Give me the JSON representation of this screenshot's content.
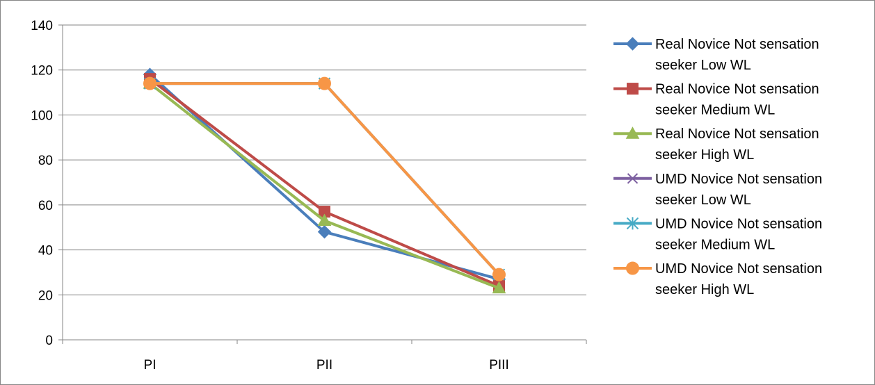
{
  "chart_data": {
    "type": "line",
    "categories": [
      "PI",
      "PII",
      "PIII"
    ],
    "ylim": [
      0,
      140
    ],
    "yticks": [
      0,
      20,
      40,
      60,
      80,
      100,
      120,
      140
    ],
    "grid": "horizontal",
    "legend_position": "right",
    "series": [
      {
        "name_lines": [
          "Real Novice Not sensation",
          "seeker Low WL"
        ],
        "color": "#4A7EBB",
        "marker": "diamond",
        "values": [
          118,
          48,
          27
        ]
      },
      {
        "name_lines": [
          "Real Novice Not sensation",
          "seeker Medium WL"
        ],
        "color": "#BE4B48",
        "marker": "square",
        "values": [
          116,
          57,
          24
        ]
      },
      {
        "name_lines": [
          "Real Novice Not sensation",
          "seeker High WL"
        ],
        "color": "#98B954",
        "marker": "triangle",
        "values": [
          114,
          53,
          23
        ]
      },
      {
        "name_lines": [
          "UMD Novice Not sensation",
          "seeker Low WL"
        ],
        "color": "#7D60A0",
        "marker": "x",
        "values": [
          114,
          114,
          29
        ]
      },
      {
        "name_lines": [
          "UMD Novice Not sensation",
          "seeker Medium WL"
        ],
        "color": "#46AAC5",
        "marker": "star",
        "values": [
          114,
          114,
          29
        ]
      },
      {
        "name_lines": [
          "UMD Novice Not sensation",
          "seeker High WL"
        ],
        "color": "#F79646",
        "marker": "circle",
        "values": [
          114,
          114,
          29
        ]
      }
    ]
  }
}
